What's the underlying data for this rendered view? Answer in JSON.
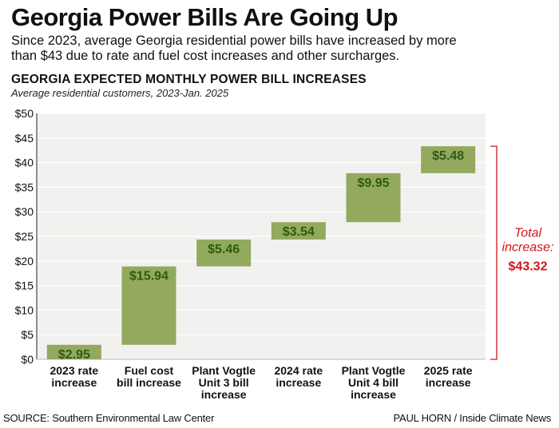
{
  "header": {
    "title": "Georgia Power Bills Are Going Up",
    "subtitle": "Since 2023, average Georgia residential power bills have increased by more than $43 due to rate and fuel cost increases and other surcharges."
  },
  "chart_data": {
    "type": "bar",
    "title": "GEORGIA EXPECTED MONTHLY POWER BILL INCREASES",
    "subtitle": "Average residential customers, 2023-Jan. 2025",
    "categories": [
      [
        "2023 rate",
        "increase"
      ],
      [
        "Fuel cost",
        "bill increase"
      ],
      [
        "Plant Vogtle",
        "Unit 3 bill",
        "increase"
      ],
      [
        "2024 rate",
        "increase"
      ],
      [
        "Plant Vogtle",
        "Unit 4 bill",
        "increase"
      ],
      [
        "2025 rate",
        "increase"
      ]
    ],
    "values": [
      2.95,
      15.94,
      5.46,
      3.54,
      9.95,
      5.48
    ],
    "value_labels": [
      "$2.95",
      "$15.94",
      "$5.46",
      "$3.54",
      "$9.95",
      "$5.48"
    ],
    "stacked_waterfall": true,
    "ylim": [
      0,
      50
    ],
    "yticks": [
      0,
      5,
      10,
      15,
      20,
      25,
      30,
      35,
      40,
      45,
      50
    ],
    "ytick_labels": [
      "$0",
      "$5",
      "$10",
      "$15",
      "$20",
      "$25",
      "$30",
      "$35",
      "$40",
      "$45",
      "$50"
    ],
    "grid": true,
    "bar_color": "#93a95e",
    "label_color": "#2e5a12",
    "total": {
      "label_lines": [
        "Total",
        "increase:"
      ],
      "value": "$43.32",
      "color": "#d0161b"
    }
  },
  "footer": {
    "source": "SOURCE: Southern Environmental Law Center",
    "credit": "PAUL HORN / Inside Climate News"
  }
}
